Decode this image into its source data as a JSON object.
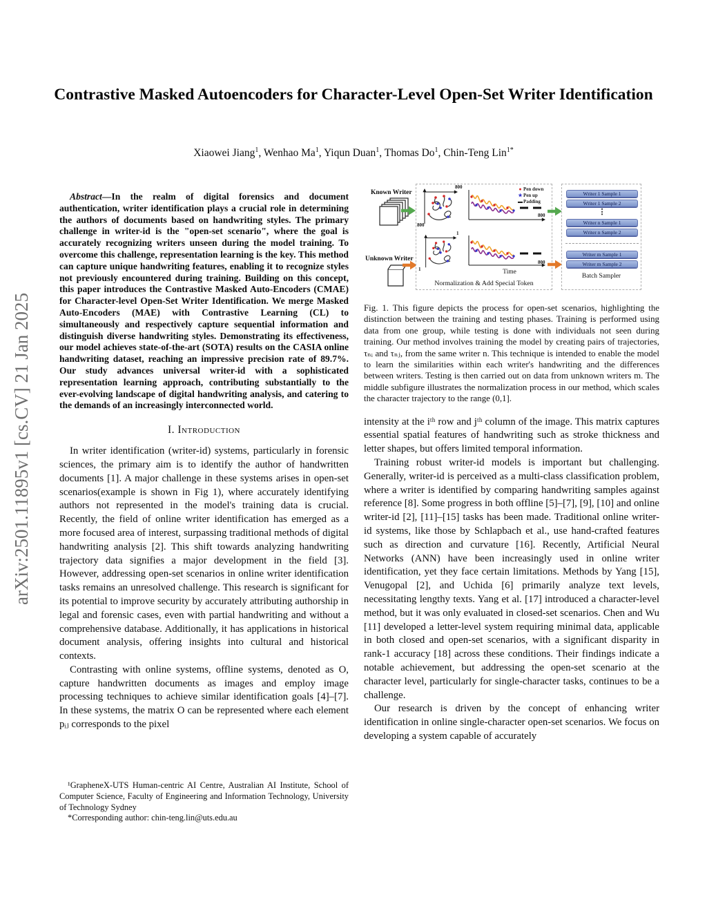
{
  "arxiv_banner": {
    "text": "arXiv:2501.11895v1  [cs.CV]  21 Jan 2025",
    "color": "#6f6f6f"
  },
  "header": {
    "title": "Contrastive Masked Autoencoders for Character-Level Open-Set Writer Identification",
    "authors": [
      {
        "name": "Xiaowei Jiang",
        "sup": "1"
      },
      {
        "name": "Wenhao Ma",
        "sup": "1"
      },
      {
        "name": "Yiqun Duan",
        "sup": "1"
      },
      {
        "name": "Thomas Do",
        "sup": "1"
      },
      {
        "name": "Chin-Teng Lin",
        "sup": "1*"
      }
    ]
  },
  "abstract": {
    "label": "Abstract",
    "text": "—In the realm of digital forensics and document authentication, writer identification plays a crucial role in determining the authors of documents based on handwriting styles. The primary challenge in writer-id is the \"open-set scenario\", where the goal is accurately recognizing writers unseen during the model training. To overcome this challenge, representation learning is the key. This method can capture unique handwriting features, enabling it to recognize styles not previously encountered during training. Building on this concept, this paper introduces the Contrastive Masked Auto-Encoders (CMAE) for Character-level Open-Set Writer Identification. We merge Masked Auto-Encoders (MAE) with Contrastive Learning (CL) to simultaneously and respectively capture sequential information and distinguish diverse handwriting styles. Demonstrating its effectiveness, our model achieves state-of-the-art (SOTA) results on the CASIA online handwriting dataset, reaching an impressive precision rate of 89.7%. Our study advances universal writer-id with a sophisticated representation learning approach, contributing substantially to the ever-evolving landscape of digital handwriting analysis, and catering to the demands of an increasingly interconnected world."
  },
  "sections": {
    "introduction_heading": "I. Introduction"
  },
  "left_column": {
    "paragraphs": [
      "In writer identification (writer-id) systems, particularly in forensic sciences, the primary aim is to identify the author of handwritten documents [1]. A major challenge in these systems arises in open-set scenarios(example is shown in Fig 1), where accurately identifying authors not represented in the model's training data is crucial. Recently, the field of online writer identification has emerged as a more focused area of interest, surpassing traditional methods of digital handwriting analysis [2]. This shift towards analyzing handwriting trajectory data signifies a major development in the field [3]. However, addressing open-set scenarios in online writer identification tasks remains an unresolved challenge. This research is significant for its potential to improve security by accurately attributing authorship in legal and forensic cases, even with partial handwriting and without a comprehensive database. Additionally, it has applications in historical document analysis, offering insights into cultural and historical contexts.",
      "Contrasting with online systems, offline systems, denoted as O, capture handwritten documents as images and employ image processing techniques to achieve similar identification goals [4]–[7]. In these systems, the matrix O can be represented where each element pᵢⱼ corresponds to the pixel"
    ]
  },
  "right_column": {
    "paragraphs": [
      "intensity at the iᵗʰ row and jᵗʰ column of the image. This matrix captures essential spatial features of handwriting such as stroke thickness and letter shapes, but offers limited temporal information.",
      "Training robust writer-id models is important but challenging. Generally, writer-id is perceived as a multi-class classification problem, where a writer is identified by comparing handwriting samples against reference [8]. Some progress in both offline [5]–[7], [9], [10] and online writer-id [2], [11]–[15] tasks has been made. Traditional online writer-id systems, like those by Schlapbach et al., use hand-crafted features such as direction and curvature [16]. Recently, Artificial Neural Networks (ANN) have been increasingly used in online writer identification, yet they face certain limitations. Methods by Yang [15], Venugopal [2], and Uchida [6] primarily analyze text levels, necessitating lengthy texts. Yang et al. [17] introduced a character-level method, but it was only evaluated in closed-set scenarios. Chen and Wu [11] developed a letter-level system requiring minimal data, applicable in both closed and open-set scenarios, with a significant disparity in rank-1 accuracy [18] across these conditions. Their findings indicate a notable achievement, but addressing the open-set scenario at the character level, particularly for single-character tasks, continues to be a challenge.",
      "Our research is driven by the concept of enhancing writer identification in online single-character open-set scenarios. We focus on developing a system capable of accurately"
    ]
  },
  "footnotes": {
    "affiliation": "¹GrapheneX-UTS Human-centric AI Centre, Australian AI Institute, School of Computer Science, Faculty of Engineering and Information Technology, University of Technology Sydney",
    "corresponding": "*Corresponding author: chin-teng.lin@uts.edu.au"
  },
  "figure1": {
    "known_writer_label": "Known Writer",
    "unknown_writer_label": "Unknown Writer",
    "legend": {
      "pen_down": "Pen down",
      "pen_up": "Pen up",
      "padding": "Padding"
    },
    "axes": {
      "known_char_xmax": "800",
      "known_char_origin": "800",
      "known_series_xmax": "800",
      "unknown_char_xmax": "1",
      "unknown_char_origin": "1",
      "unknown_series_xmax": "800"
    },
    "time_axis_label": "Time",
    "normalization_label": "Normalization & Add Special Token",
    "batch_sampler_label": "Batch Sampler",
    "sampler_buttons": [
      "Writer 1 Sample 1",
      "Writer 1 Sample 2",
      "Writer n Sample 1",
      "Writer n Sample 2",
      "Writer m Sample 1",
      "Writer m Sample 2"
    ],
    "ellipsis_glyph": "⋮",
    "caption": "Fig. 1.   This figure depicts the process for open-set scenarios, highlighting the distinction between the training and testing phases. Training is performed using data from one group, while testing is done with individuals not seen during training. Our method involves training the model by creating pairs of trajectories, τₙᵢ and τₙⱼ, from the same writer n. This technique is intended to enable the model to learn the similarities within each writer's handwriting and the differences between writers. Testing is then carried out on data from unknown writers m. The middle subfigure illustrates the normalization process in our method, which scales the character trajectory to the range (0,1].",
    "colors": {
      "known_arrow": "#55a84f",
      "unknown_arrow": "#e2792a",
      "sample_button": "#8ca2d5",
      "trajectory_orange": "#efa32a",
      "trajectory_purple": "#8c2d8c",
      "pen_down": "#d62728",
      "pen_up": "#3333cc"
    }
  }
}
